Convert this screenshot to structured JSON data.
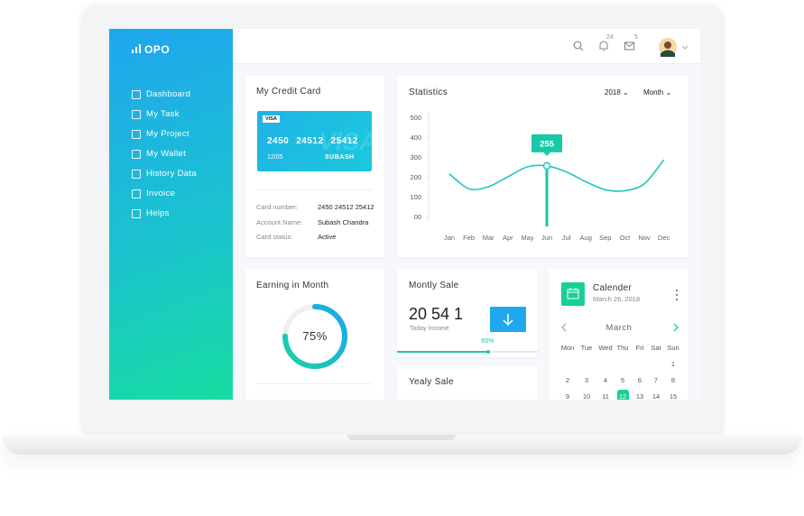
{
  "brand": "OPO",
  "menu": [
    "Dashboard",
    "My Task",
    "My Project",
    "My Wallet",
    "History Data",
    "Invoice",
    "Helps"
  ],
  "notifications": {
    "alerts": 24,
    "messages": 5
  },
  "credit_card": {
    "title": "My Credit Card",
    "brand": "VISA",
    "number_groups": [
      "2450",
      "24512",
      "25412"
    ],
    "expiry": "12/05",
    "holder": "SUBASH",
    "details": [
      {
        "label": "Card number:",
        "value": "2450 24512 25412"
      },
      {
        "label": "Account Name:",
        "value": "Subash Chandra"
      },
      {
        "label": "Card status:",
        "value": "Active"
      }
    ]
  },
  "statistics": {
    "title": "Statistics",
    "year": "2018",
    "period": "Month",
    "chart": {
      "type": "line",
      "categories": [
        "Jan",
        "Feb",
        "Mar",
        "Apr",
        "May",
        "Jun",
        "Jul",
        "Aug",
        "Sep",
        "Oct",
        "Nov",
        "Dec"
      ],
      "values": [
        215,
        140,
        150,
        200,
        250,
        255,
        225,
        175,
        135,
        130,
        165,
        285
      ],
      "color": "#1ec7c0",
      "ylim": [
        0,
        500
      ],
      "yticks": [
        {
          "value": 0,
          "label": "00"
        },
        100,
        200,
        300,
        400,
        500
      ]
    }
  },
  "earning": {
    "title": "Earning in Month",
    "value": 75,
    "value_label": "75%"
  },
  "monthly_sale": {
    "title": "Montly Sale",
    "amount": "20 54 1",
    "caption": "Today Income",
    "progress": 65,
    "progress_label": "65%"
  },
  "yearly_sale": {
    "title": "Yealy Sale"
  },
  "calendar": {
    "title": "Calender",
    "date": "March 26, 2018",
    "month": "March",
    "weekdays": [
      "Mon",
      "Tue",
      "Wed",
      "Thu",
      "Fri",
      "Sat",
      "Sun"
    ],
    "weeks": [
      [
        null,
        null,
        null,
        null,
        null,
        null,
        1
      ],
      [
        2,
        3,
        4,
        5,
        6,
        7,
        8
      ],
      [
        9,
        10,
        11,
        12,
        13,
        14,
        15
      ]
    ],
    "selected": 12
  }
}
